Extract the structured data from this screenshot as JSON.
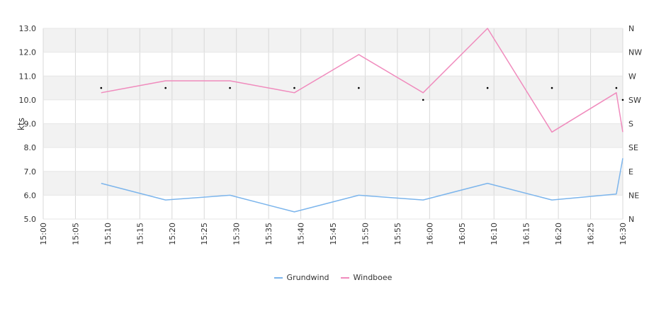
{
  "chart_data": {
    "type": "line",
    "ylabel": "kts",
    "ylim": [
      5,
      13
    ],
    "yticks": [
      "5.0",
      "6.0",
      "7.0",
      "8.0",
      "9.0",
      "10.0",
      "11.0",
      "12.0",
      "13.0"
    ],
    "xlim": [
      "15:00",
      "16:30"
    ],
    "xticks": [
      "15:00",
      "15:05",
      "15:10",
      "15:15",
      "15:20",
      "15:25",
      "15:30",
      "15:35",
      "15:40",
      "15:45",
      "15:50",
      "15:55",
      "16:00",
      "16:05",
      "16:10",
      "16:15",
      "16:20",
      "16:25",
      "16:30"
    ],
    "y2ticks": [
      "N",
      "NE",
      "E",
      "SE",
      "S",
      "SW",
      "W",
      "NW",
      "N"
    ],
    "grid": true,
    "legend_position": "bottom",
    "series": [
      {
        "name": "Grundwind",
        "color": "#7cb5ec",
        "x": [
          "15:09",
          "15:19",
          "15:29",
          "15:39",
          "15:49",
          "15:59",
          "16:09",
          "16:19",
          "16:29",
          "16:30"
        ],
        "values": [
          6.5,
          5.8,
          6.0,
          5.3,
          6.0,
          5.8,
          6.5,
          5.8,
          6.05,
          7.55
        ]
      },
      {
        "name": "Windboee",
        "color": "#f08bbd",
        "x": [
          "15:09",
          "15:19",
          "15:29",
          "15:39",
          "15:49",
          "15:59",
          "16:09",
          "16:19",
          "16:29",
          "16:30"
        ],
        "values": [
          10.3,
          10.8,
          10.8,
          10.3,
          11.9,
          10.3,
          13.0,
          8.65,
          10.3,
          8.65
        ]
      }
    ],
    "direction_points": {
      "x": [
        "15:09",
        "15:19",
        "15:29",
        "15:39",
        "15:49",
        "15:59",
        "16:09",
        "16:19",
        "16:29",
        "16:30"
      ],
      "values": [
        10.5,
        10.5,
        10.5,
        10.5,
        10.5,
        10.0,
        10.5,
        10.5,
        10.5,
        10.0
      ]
    }
  }
}
